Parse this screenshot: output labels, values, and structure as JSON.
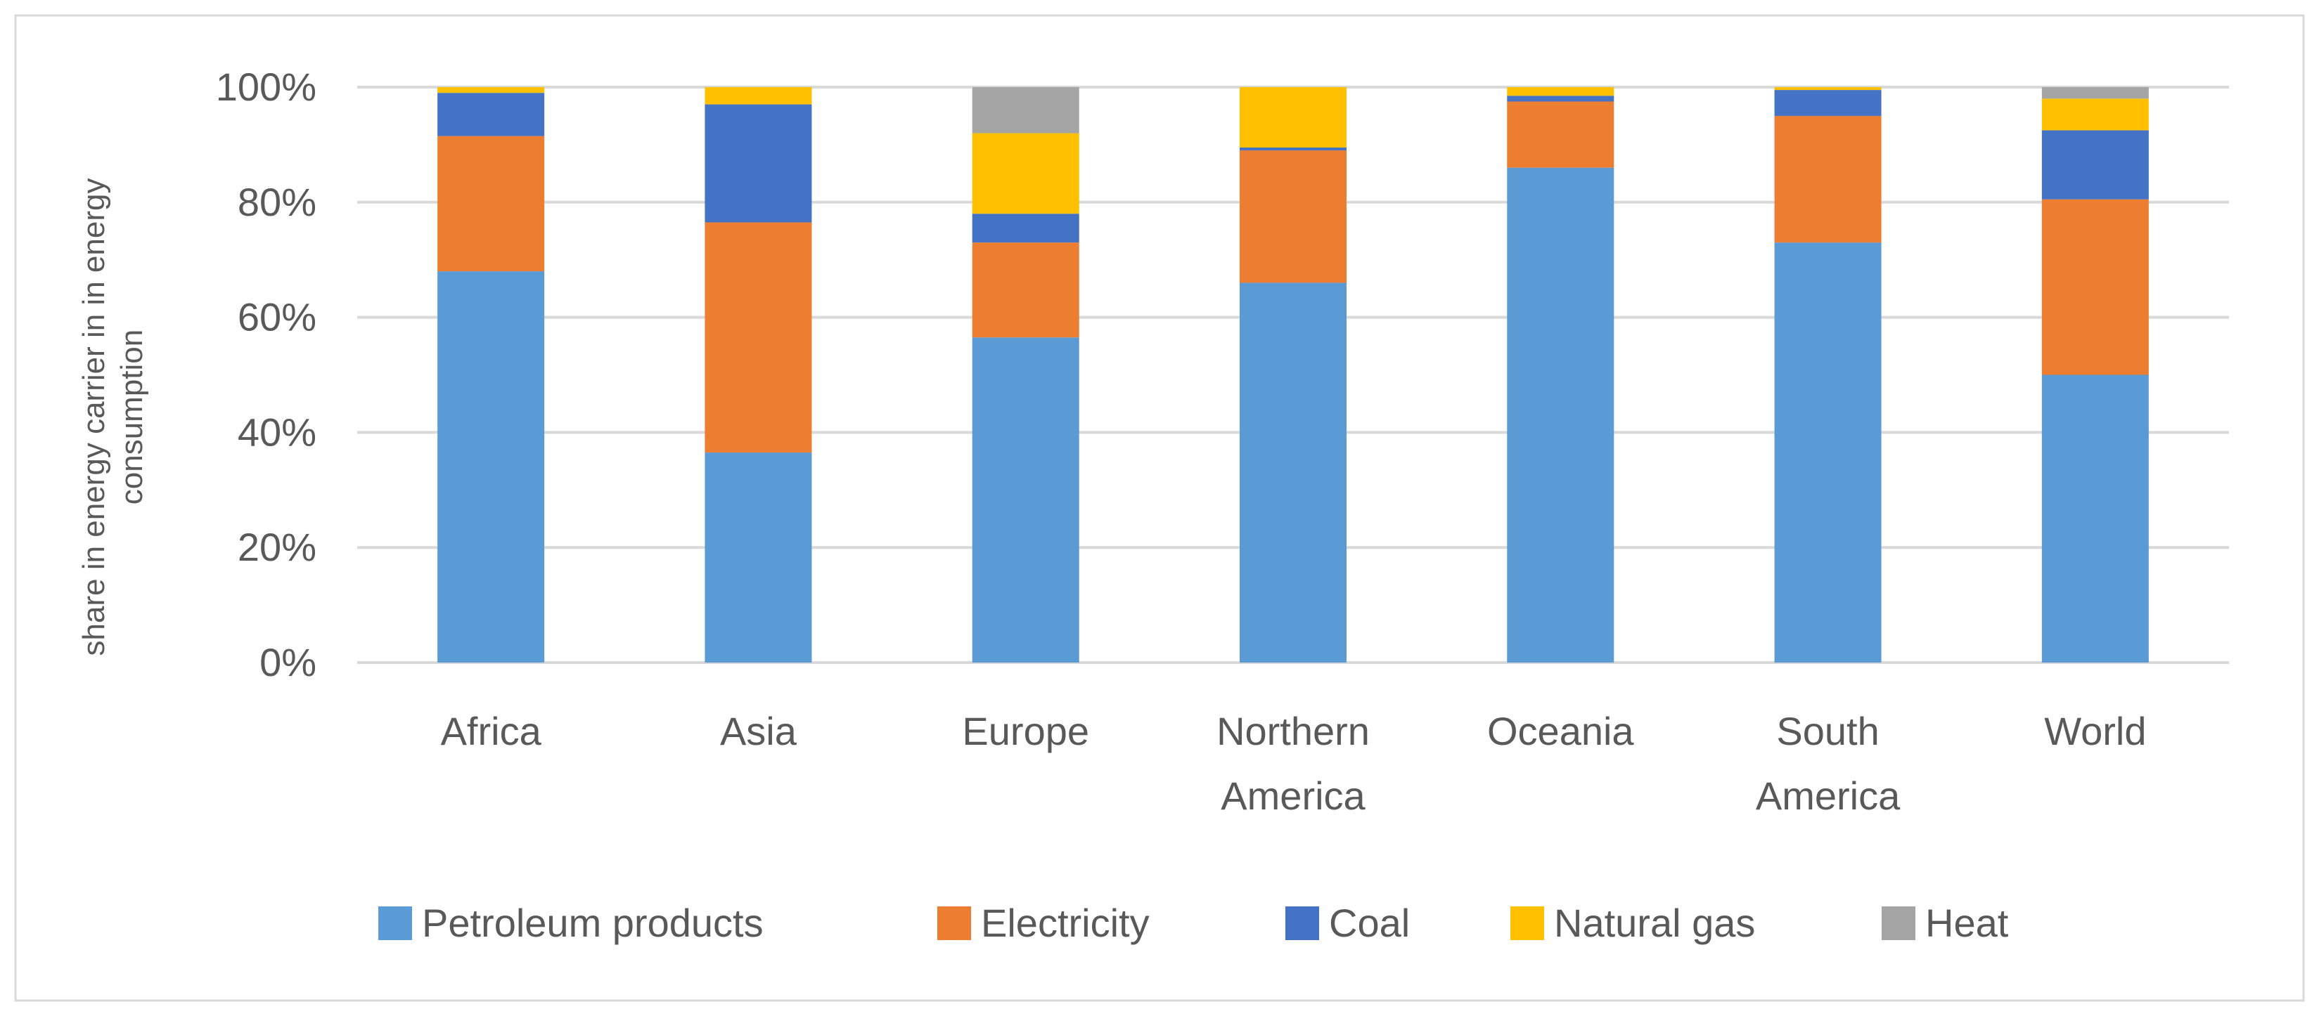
{
  "chart_data": {
    "type": "bar",
    "stacked": true,
    "categories": [
      "Africa",
      "Asia",
      "Europe",
      "Northern America",
      "Oceania",
      "South America",
      "World"
    ],
    "category_lines": [
      [
        "Africa"
      ],
      [
        "Asia"
      ],
      [
        "Europe"
      ],
      [
        "Northern",
        "America"
      ],
      [
        "Oceania"
      ],
      [
        "South",
        "America"
      ],
      [
        "World"
      ]
    ],
    "series": [
      {
        "name": "Petroleum products",
        "color": "#5B9BD5",
        "values": [
          68,
          36.5,
          56.5,
          66,
          86,
          73,
          50
        ]
      },
      {
        "name": "Electricity",
        "color": "#ED7D31",
        "values": [
          23.5,
          40,
          16.5,
          23,
          11.5,
          22,
          30.5
        ]
      },
      {
        "name": "Coal",
        "color": "#4472C4",
        "values": [
          7.5,
          20.5,
          5,
          0.5,
          1,
          4.5,
          12
        ]
      },
      {
        "name": "Natural gas",
        "color": "#FFC000",
        "values": [
          1,
          3,
          14,
          10.5,
          1.5,
          0.5,
          5.5
        ]
      },
      {
        "name": "Heat",
        "color": "#A5A5A5",
        "values": [
          0,
          0,
          8,
          0,
          0,
          0,
          2
        ]
      }
    ],
    "y_ticks": [
      "0%",
      "20%",
      "40%",
      "60%",
      "80%",
      "100%"
    ],
    "ylim": [
      0,
      100
    ],
    "ylabel_lines": [
      "share in energy carrier in in energy",
      "consumption"
    ],
    "xlabel": "",
    "title": "",
    "legend_position": "bottom",
    "grid": true
  }
}
